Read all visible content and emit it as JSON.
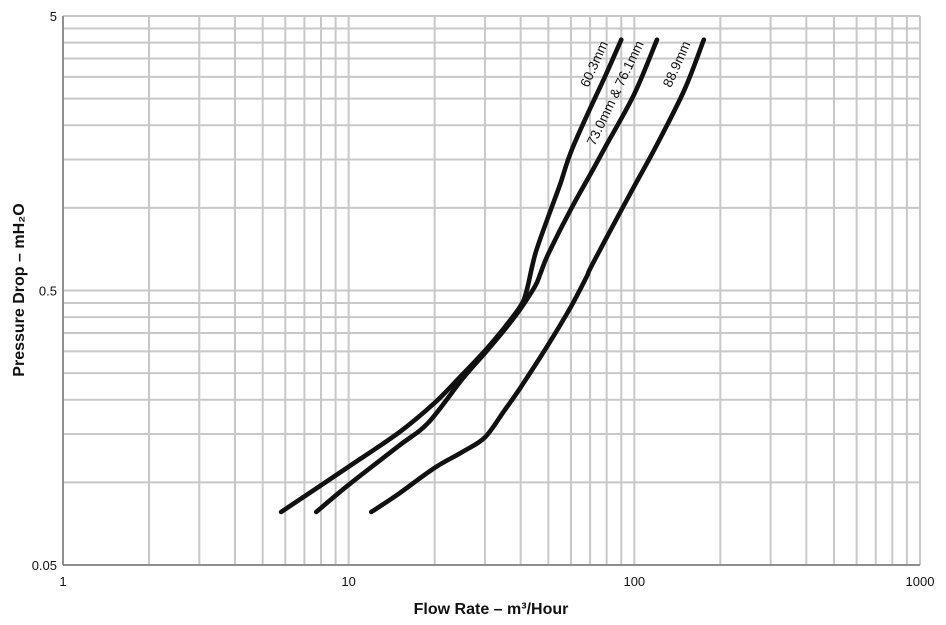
{
  "chart_data": {
    "type": "line",
    "title": "",
    "xlabel": "Flow Rate – m³/Hour",
    "ylabel": "Pressure Drop – mH₂O",
    "x_scale": "log",
    "y_scale": "log",
    "xlim": [
      1,
      1000
    ],
    "ylim": [
      0.05,
      5
    ],
    "x_ticks": [
      {
        "value": 1,
        "label": "1"
      },
      {
        "value": 10,
        "label": "10"
      },
      {
        "value": 100,
        "label": "100"
      },
      {
        "value": 1000,
        "label": "1000"
      }
    ],
    "y_ticks": [
      {
        "value": 0.05,
        "label": "0.05"
      },
      {
        "value": 0.5,
        "label": "0.5"
      },
      {
        "value": 5,
        "label": "5"
      }
    ],
    "grid": true,
    "legend": "none",
    "series": [
      {
        "name": "60.3mm",
        "x": [
          5.8,
          10,
          15,
          20,
          25,
          30,
          35,
          40,
          42,
          45,
          50,
          55,
          60,
          70,
          80,
          90
        ],
        "y": [
          0.078,
          0.114,
          0.152,
          0.195,
          0.247,
          0.302,
          0.365,
          0.44,
          0.5,
          0.68,
          0.93,
          1.22,
          1.6,
          2.3,
          3.1,
          4.1
        ]
      },
      {
        "name": "73.0mm & 76.1mm",
        "x": [
          7.7,
          10,
          15,
          19,
          25,
          30,
          35,
          40,
          45,
          47,
          50,
          60,
          70,
          80,
          100,
          120
        ],
        "y": [
          0.078,
          0.098,
          0.136,
          0.165,
          0.238,
          0.296,
          0.358,
          0.43,
          0.52,
          0.58,
          0.68,
          0.99,
          1.32,
          1.7,
          2.6,
          4.1
        ]
      },
      {
        "name": "88.9mm",
        "x": [
          12,
          15,
          20,
          25,
          30,
          35,
          40,
          50,
          60,
          68,
          70,
          80,
          100,
          120,
          150,
          175
        ],
        "y": [
          0.078,
          0.091,
          0.113,
          0.129,
          0.146,
          0.182,
          0.222,
          0.318,
          0.437,
          0.56,
          0.6,
          0.78,
          1.2,
          1.7,
          2.7,
          4.1
        ]
      }
    ]
  }
}
